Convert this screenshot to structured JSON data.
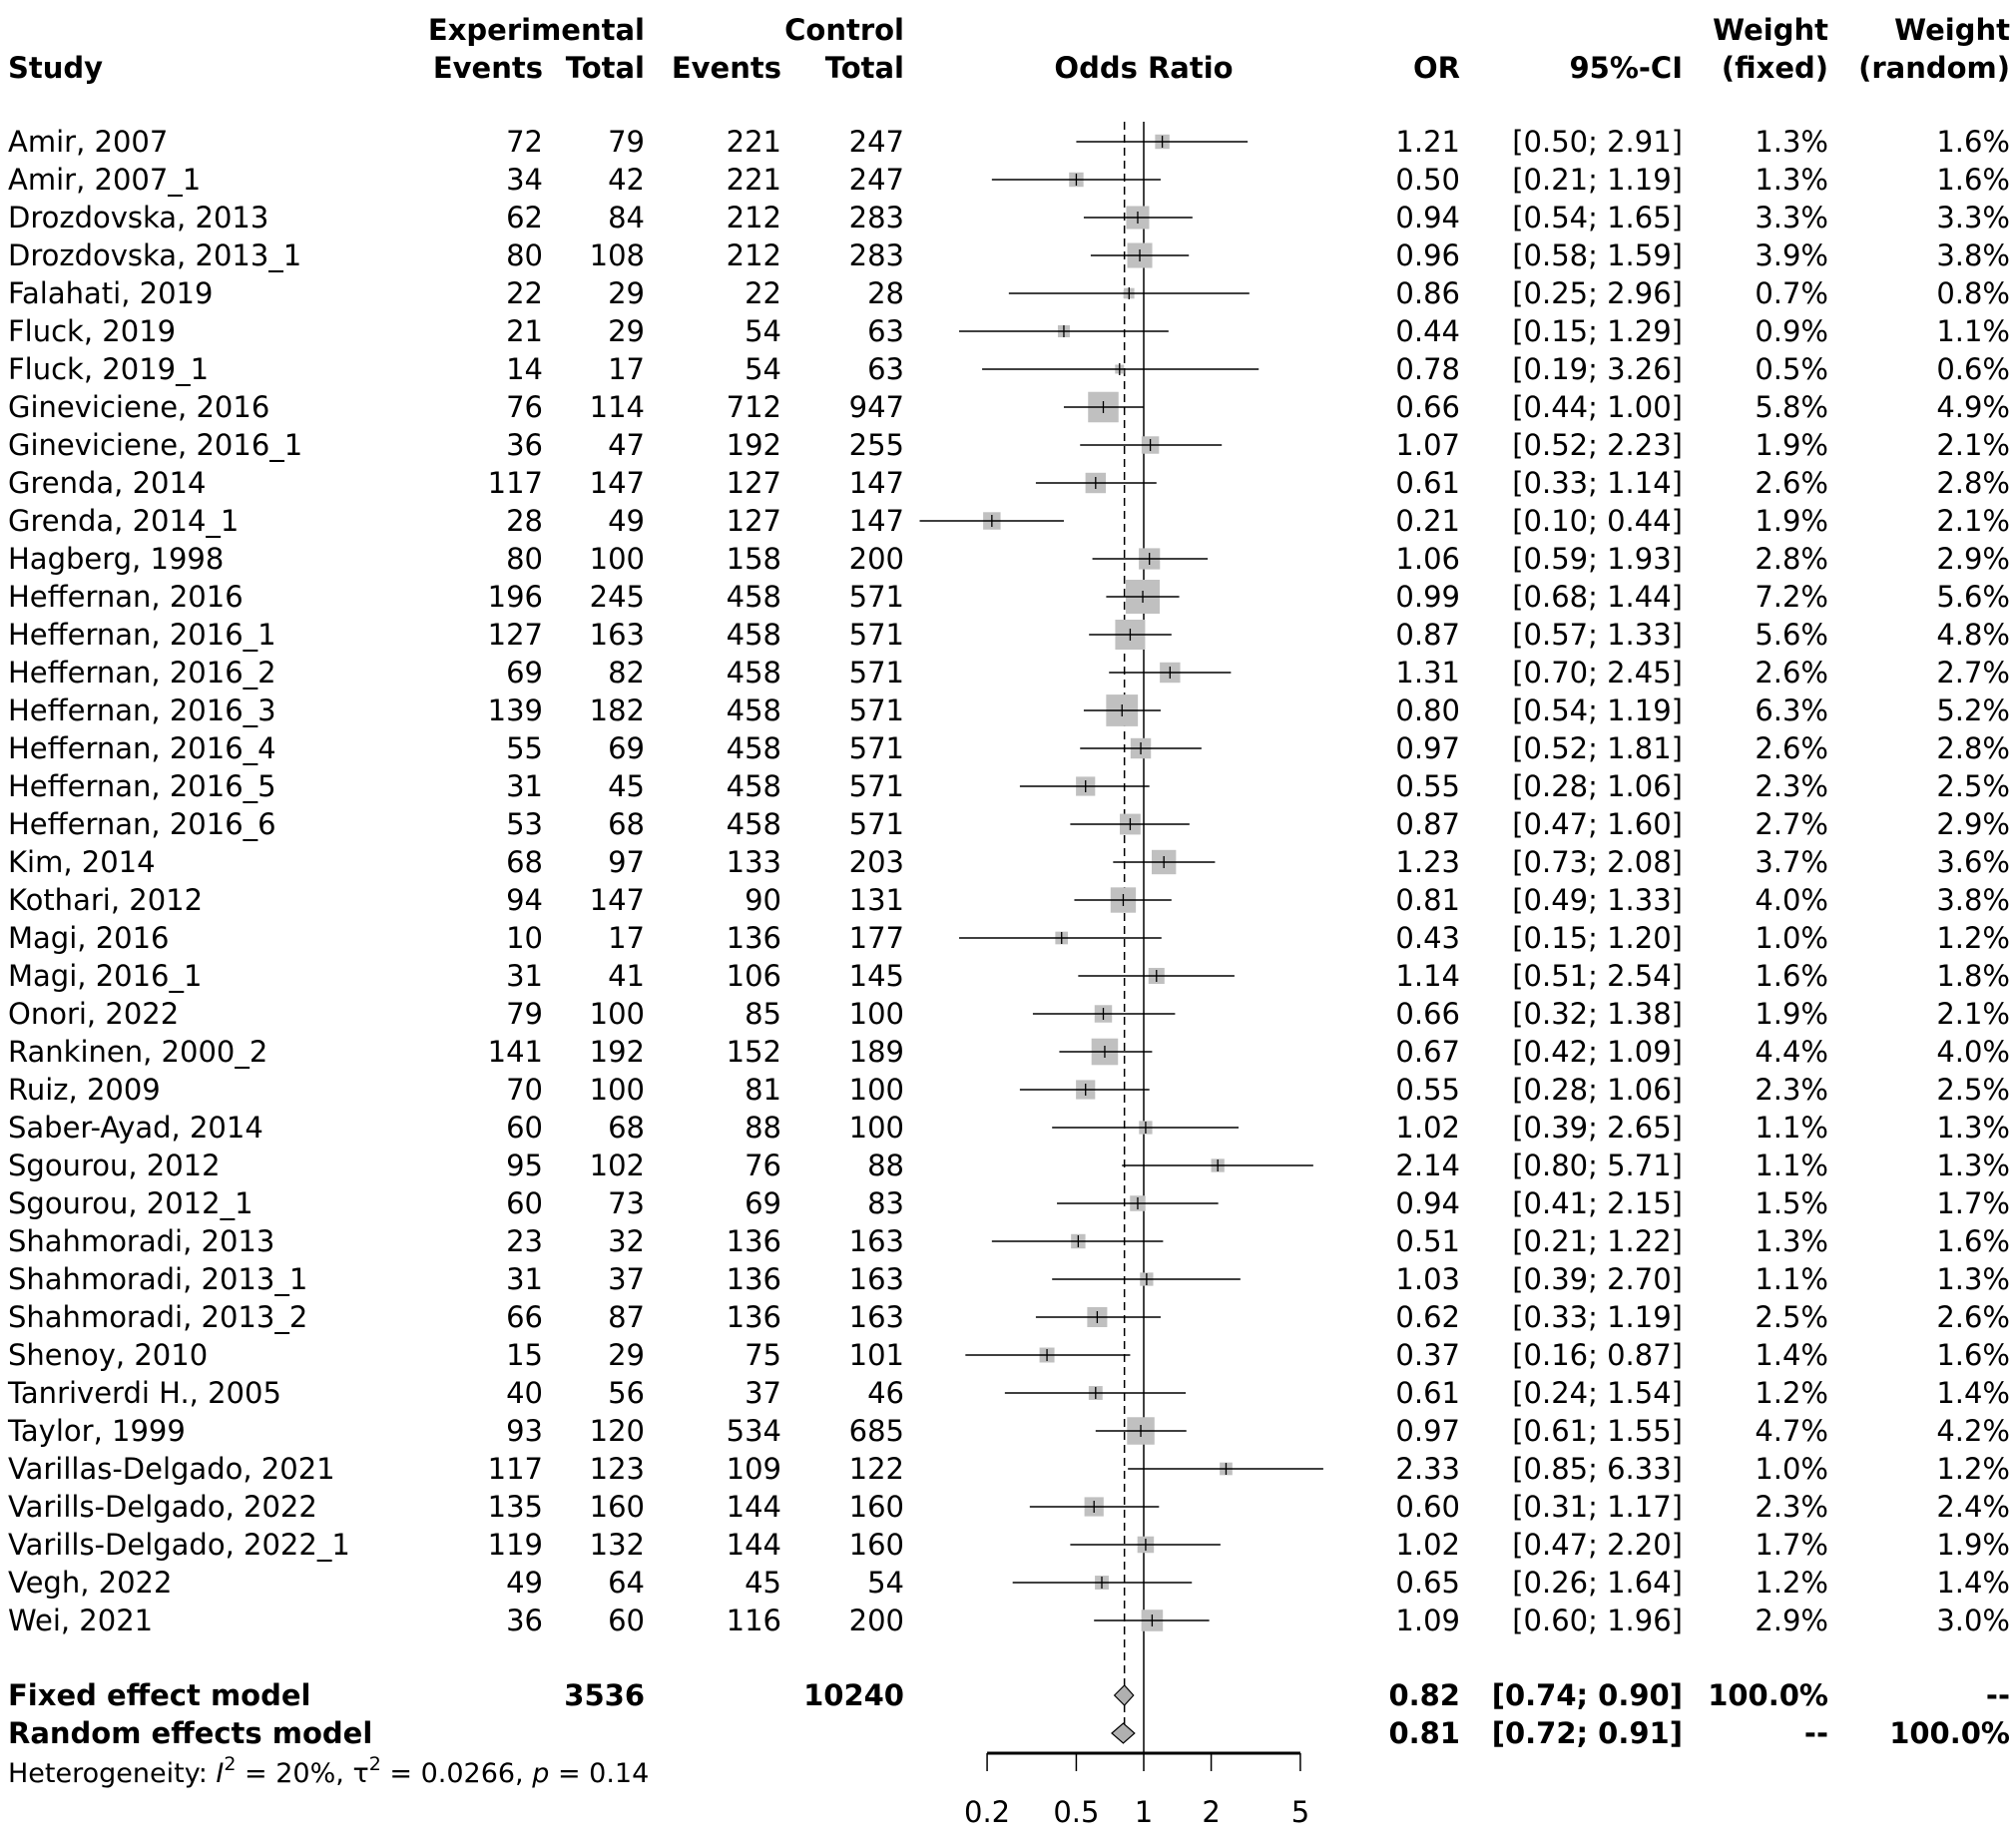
{
  "chart_data": {
    "type": "forest",
    "xlabel": "Odds Ratio",
    "scale": "log",
    "xlim": [
      0.2,
      5
    ],
    "ticks": [
      "0.2",
      "0.5",
      "1",
      "2",
      "5"
    ],
    "tick_values": [
      0.2,
      0.5,
      1,
      2,
      5
    ],
    "headers": {
      "study": "Study",
      "experimental": "Experimental",
      "control": "Control",
      "events": "Events",
      "total": "Total",
      "odds_ratio": "Odds Ratio",
      "or": "OR",
      "ci": "95%-CI",
      "weight": "Weight",
      "fixed": "(fixed)",
      "random": "(random)"
    },
    "studies": [
      {
        "study": "Amir, 2007",
        "e_ev": "72",
        "e_tot": "79",
        "c_ev": "221",
        "c_tot": "247",
        "or": "1.21",
        "ci": "[0.50; 2.91]",
        "wf": "1.3%",
        "wr": "1.6%",
        "v": [
          1.21,
          0.5,
          2.91,
          1.3
        ]
      },
      {
        "study": "Amir, 2007_1",
        "e_ev": "34",
        "e_tot": "42",
        "c_ev": "221",
        "c_tot": "247",
        "or": "0.50",
        "ci": "[0.21; 1.19]",
        "wf": "1.3%",
        "wr": "1.6%",
        "v": [
          0.5,
          0.21,
          1.19,
          1.3
        ]
      },
      {
        "study": "Drozdovska, 2013",
        "e_ev": "62",
        "e_tot": "84",
        "c_ev": "212",
        "c_tot": "283",
        "or": "0.94",
        "ci": "[0.54; 1.65]",
        "wf": "3.3%",
        "wr": "3.3%",
        "v": [
          0.94,
          0.54,
          1.65,
          3.3
        ]
      },
      {
        "study": "Drozdovska, 2013_1",
        "e_ev": "80",
        "e_tot": "108",
        "c_ev": "212",
        "c_tot": "283",
        "or": "0.96",
        "ci": "[0.58; 1.59]",
        "wf": "3.9%",
        "wr": "3.8%",
        "v": [
          0.96,
          0.58,
          1.59,
          3.9
        ]
      },
      {
        "study": "Falahati, 2019",
        "e_ev": "22",
        "e_tot": "29",
        "c_ev": "22",
        "c_tot": "28",
        "or": "0.86",
        "ci": "[0.25; 2.96]",
        "wf": "0.7%",
        "wr": "0.8%",
        "v": [
          0.86,
          0.25,
          2.96,
          0.7
        ]
      },
      {
        "study": "Fluck, 2019",
        "e_ev": "21",
        "e_tot": "29",
        "c_ev": "54",
        "c_tot": "63",
        "or": "0.44",
        "ci": "[0.15; 1.29]",
        "wf": "0.9%",
        "wr": "1.1%",
        "v": [
          0.44,
          0.15,
          1.29,
          0.9
        ]
      },
      {
        "study": "Fluck, 2019_1",
        "e_ev": "14",
        "e_tot": "17",
        "c_ev": "54",
        "c_tot": "63",
        "or": "0.78",
        "ci": "[0.19; 3.26]",
        "wf": "0.5%",
        "wr": "0.6%",
        "v": [
          0.78,
          0.19,
          3.26,
          0.5
        ]
      },
      {
        "study": "Gineviciene, 2016",
        "e_ev": "76",
        "e_tot": "114",
        "c_ev": "712",
        "c_tot": "947",
        "or": "0.66",
        "ci": "[0.44; 1.00]",
        "wf": "5.8%",
        "wr": "4.9%",
        "v": [
          0.66,
          0.44,
          1.0,
          5.8
        ]
      },
      {
        "study": "Gineviciene, 2016_1",
        "e_ev": "36",
        "e_tot": "47",
        "c_ev": "192",
        "c_tot": "255",
        "or": "1.07",
        "ci": "[0.52; 2.23]",
        "wf": "1.9%",
        "wr": "2.1%",
        "v": [
          1.07,
          0.52,
          2.23,
          1.9
        ]
      },
      {
        "study": "Grenda, 2014",
        "e_ev": "117",
        "e_tot": "147",
        "c_ev": "127",
        "c_tot": "147",
        "or": "0.61",
        "ci": "[0.33; 1.14]",
        "wf": "2.6%",
        "wr": "2.8%",
        "v": [
          0.61,
          0.33,
          1.14,
          2.6
        ]
      },
      {
        "study": "Grenda, 2014_1",
        "e_ev": "28",
        "e_tot": "49",
        "c_ev": "127",
        "c_tot": "147",
        "or": "0.21",
        "ci": "[0.10; 0.44]",
        "wf": "1.9%",
        "wr": "2.1%",
        "v": [
          0.21,
          0.1,
          0.44,
          1.9
        ]
      },
      {
        "study": "Hagberg, 1998",
        "e_ev": "80",
        "e_tot": "100",
        "c_ev": "158",
        "c_tot": "200",
        "or": "1.06",
        "ci": "[0.59; 1.93]",
        "wf": "2.8%",
        "wr": "2.9%",
        "v": [
          1.06,
          0.59,
          1.93,
          2.8
        ]
      },
      {
        "study": "Heffernan, 2016",
        "e_ev": "196",
        "e_tot": "245",
        "c_ev": "458",
        "c_tot": "571",
        "or": "0.99",
        "ci": "[0.68; 1.44]",
        "wf": "7.2%",
        "wr": "5.6%",
        "v": [
          0.99,
          0.68,
          1.44,
          7.2
        ]
      },
      {
        "study": "Heffernan, 2016_1",
        "e_ev": "127",
        "e_tot": "163",
        "c_ev": "458",
        "c_tot": "571",
        "or": "0.87",
        "ci": "[0.57; 1.33]",
        "wf": "5.6%",
        "wr": "4.8%",
        "v": [
          0.87,
          0.57,
          1.33,
          5.6
        ]
      },
      {
        "study": "Heffernan, 2016_2",
        "e_ev": "69",
        "e_tot": "82",
        "c_ev": "458",
        "c_tot": "571",
        "or": "1.31",
        "ci": "[0.70; 2.45]",
        "wf": "2.6%",
        "wr": "2.7%",
        "v": [
          1.31,
          0.7,
          2.45,
          2.6
        ]
      },
      {
        "study": "Heffernan, 2016_3",
        "e_ev": "139",
        "e_tot": "182",
        "c_ev": "458",
        "c_tot": "571",
        "or": "0.80",
        "ci": "[0.54; 1.19]",
        "wf": "6.3%",
        "wr": "5.2%",
        "v": [
          0.8,
          0.54,
          1.19,
          6.3
        ]
      },
      {
        "study": "Heffernan, 2016_4",
        "e_ev": "55",
        "e_tot": "69",
        "c_ev": "458",
        "c_tot": "571",
        "or": "0.97",
        "ci": "[0.52; 1.81]",
        "wf": "2.6%",
        "wr": "2.8%",
        "v": [
          0.97,
          0.52,
          1.81,
          2.6
        ]
      },
      {
        "study": "Heffernan, 2016_5",
        "e_ev": "31",
        "e_tot": "45",
        "c_ev": "458",
        "c_tot": "571",
        "or": "0.55",
        "ci": "[0.28; 1.06]",
        "wf": "2.3%",
        "wr": "2.5%",
        "v": [
          0.55,
          0.28,
          1.06,
          2.3
        ]
      },
      {
        "study": "Heffernan, 2016_6",
        "e_ev": "53",
        "e_tot": "68",
        "c_ev": "458",
        "c_tot": "571",
        "or": "0.87",
        "ci": "[0.47; 1.60]",
        "wf": "2.7%",
        "wr": "2.9%",
        "v": [
          0.87,
          0.47,
          1.6,
          2.7
        ]
      },
      {
        "study": "Kim, 2014",
        "e_ev": "68",
        "e_tot": "97",
        "c_ev": "133",
        "c_tot": "203",
        "or": "1.23",
        "ci": "[0.73; 2.08]",
        "wf": "3.7%",
        "wr": "3.6%",
        "v": [
          1.23,
          0.73,
          2.08,
          3.7
        ]
      },
      {
        "study": "Kothari, 2012",
        "e_ev": "94",
        "e_tot": "147",
        "c_ev": "90",
        "c_tot": "131",
        "or": "0.81",
        "ci": "[0.49; 1.33]",
        "wf": "4.0%",
        "wr": "3.8%",
        "v": [
          0.81,
          0.49,
          1.33,
          4.0
        ]
      },
      {
        "study": "Magi, 2016",
        "e_ev": "10",
        "e_tot": "17",
        "c_ev": "136",
        "c_tot": "177",
        "or": "0.43",
        "ci": "[0.15; 1.20]",
        "wf": "1.0%",
        "wr": "1.2%",
        "v": [
          0.43,
          0.15,
          1.2,
          1.0
        ]
      },
      {
        "study": "Magi, 2016_1",
        "e_ev": "31",
        "e_tot": "41",
        "c_ev": "106",
        "c_tot": "145",
        "or": "1.14",
        "ci": "[0.51; 2.54]",
        "wf": "1.6%",
        "wr": "1.8%",
        "v": [
          1.14,
          0.51,
          2.54,
          1.6
        ]
      },
      {
        "study": "Onori, 2022",
        "e_ev": "79",
        "e_tot": "100",
        "c_ev": "85",
        "c_tot": "100",
        "or": "0.66",
        "ci": "[0.32; 1.38]",
        "wf": "1.9%",
        "wr": "2.1%",
        "v": [
          0.66,
          0.32,
          1.38,
          1.9
        ]
      },
      {
        "study": "Rankinen, 2000_2",
        "e_ev": "141",
        "e_tot": "192",
        "c_ev": "152",
        "c_tot": "189",
        "or": "0.67",
        "ci": "[0.42; 1.09]",
        "wf": "4.4%",
        "wr": "4.0%",
        "v": [
          0.67,
          0.42,
          1.09,
          4.4
        ]
      },
      {
        "study": "Ruiz, 2009",
        "e_ev": "70",
        "e_tot": "100",
        "c_ev": "81",
        "c_tot": "100",
        "or": "0.55",
        "ci": "[0.28; 1.06]",
        "wf": "2.3%",
        "wr": "2.5%",
        "v": [
          0.55,
          0.28,
          1.06,
          2.3
        ]
      },
      {
        "study": "Saber-Ayad, 2014",
        "e_ev": "60",
        "e_tot": "68",
        "c_ev": "88",
        "c_tot": "100",
        "or": "1.02",
        "ci": "[0.39; 2.65]",
        "wf": "1.1%",
        "wr": "1.3%",
        "v": [
          1.02,
          0.39,
          2.65,
          1.1
        ]
      },
      {
        "study": "Sgourou, 2012",
        "e_ev": "95",
        "e_tot": "102",
        "c_ev": "76",
        "c_tot": "88",
        "or": "2.14",
        "ci": "[0.80; 5.71]",
        "wf": "1.1%",
        "wr": "1.3%",
        "v": [
          2.14,
          0.8,
          5.71,
          1.1
        ]
      },
      {
        "study": "Sgourou, 2012_1",
        "e_ev": "60",
        "e_tot": "73",
        "c_ev": "69",
        "c_tot": "83",
        "or": "0.94",
        "ci": "[0.41; 2.15]",
        "wf": "1.5%",
        "wr": "1.7%",
        "v": [
          0.94,
          0.41,
          2.15,
          1.5
        ]
      },
      {
        "study": "Shahmoradi, 2013",
        "e_ev": "23",
        "e_tot": "32",
        "c_ev": "136",
        "c_tot": "163",
        "or": "0.51",
        "ci": "[0.21; 1.22]",
        "wf": "1.3%",
        "wr": "1.6%",
        "v": [
          0.51,
          0.21,
          1.22,
          1.3
        ]
      },
      {
        "study": "Shahmoradi, 2013_1",
        "e_ev": "31",
        "e_tot": "37",
        "c_ev": "136",
        "c_tot": "163",
        "or": "1.03",
        "ci": "[0.39; 2.70]",
        "wf": "1.1%",
        "wr": "1.3%",
        "v": [
          1.03,
          0.39,
          2.7,
          1.1
        ]
      },
      {
        "study": "Shahmoradi, 2013_2",
        "e_ev": "66",
        "e_tot": "87",
        "c_ev": "136",
        "c_tot": "163",
        "or": "0.62",
        "ci": "[0.33; 1.19]",
        "wf": "2.5%",
        "wr": "2.6%",
        "v": [
          0.62,
          0.33,
          1.19,
          2.5
        ]
      },
      {
        "study": "Shenoy, 2010",
        "e_ev": "15",
        "e_tot": "29",
        "c_ev": "75",
        "c_tot": "101",
        "or": "0.37",
        "ci": "[0.16; 0.87]",
        "wf": "1.4%",
        "wr": "1.6%",
        "v": [
          0.37,
          0.16,
          0.87,
          1.4
        ]
      },
      {
        "study": "Tanriverdi H., 2005",
        "e_ev": "40",
        "e_tot": "56",
        "c_ev": "37",
        "c_tot": "46",
        "or": "0.61",
        "ci": "[0.24; 1.54]",
        "wf": "1.2%",
        "wr": "1.4%",
        "v": [
          0.61,
          0.24,
          1.54,
          1.2
        ]
      },
      {
        "study": "Taylor, 1999",
        "e_ev": "93",
        "e_tot": "120",
        "c_ev": "534",
        "c_tot": "685",
        "or": "0.97",
        "ci": "[0.61; 1.55]",
        "wf": "4.7%",
        "wr": "4.2%",
        "v": [
          0.97,
          0.61,
          1.55,
          4.7
        ]
      },
      {
        "study": "Varillas-Delgado, 2021",
        "e_ev": "117",
        "e_tot": "123",
        "c_ev": "109",
        "c_tot": "122",
        "or": "2.33",
        "ci": "[0.85; 6.33]",
        "wf": "1.0%",
        "wr": "1.2%",
        "v": [
          2.33,
          0.85,
          6.33,
          1.0
        ]
      },
      {
        "study": "Varills-Delgado, 2022",
        "e_ev": "135",
        "e_tot": "160",
        "c_ev": "144",
        "c_tot": "160",
        "or": "0.60",
        "ci": "[0.31; 1.17]",
        "wf": "2.3%",
        "wr": "2.4%",
        "v": [
          0.6,
          0.31,
          1.17,
          2.3
        ]
      },
      {
        "study": "Varills-Delgado, 2022_1",
        "e_ev": "119",
        "e_tot": "132",
        "c_ev": "144",
        "c_tot": "160",
        "or": "1.02",
        "ci": "[0.47; 2.20]",
        "wf": "1.7%",
        "wr": "1.9%",
        "v": [
          1.02,
          0.47,
          2.2,
          1.7
        ]
      },
      {
        "study": "Vegh, 2022",
        "e_ev": "49",
        "e_tot": "64",
        "c_ev": "45",
        "c_tot": "54",
        "or": "0.65",
        "ci": "[0.26; 1.64]",
        "wf": "1.2%",
        "wr": "1.4%",
        "v": [
          0.65,
          0.26,
          1.64,
          1.2
        ]
      },
      {
        "study": "Wei, 2021",
        "e_ev": "36",
        "e_tot": "60",
        "c_ev": "116",
        "c_tot": "200",
        "or": "1.09",
        "ci": "[0.60; 1.96]",
        "wf": "2.9%",
        "wr": "3.0%",
        "v": [
          1.09,
          0.6,
          1.96,
          2.9
        ]
      }
    ],
    "fixed": {
      "label": "Fixed effect model",
      "e_tot": "3536",
      "c_tot": "10240",
      "or": "0.82",
      "ci": "[0.74; 0.90]",
      "wf": "100.0%",
      "wr": "--",
      "v": [
        0.82,
        0.74,
        0.9
      ]
    },
    "random": {
      "label": "Random effects model",
      "or": "0.81",
      "ci": "[0.72; 0.91]",
      "wf": "--",
      "wr": "100.0%",
      "v": [
        0.81,
        0.72,
        0.91
      ]
    },
    "heterogeneity": {
      "prefix": "Heterogeneity: ",
      "i2_sym": "I",
      "i2": " = 20%, ",
      "tau_sym": "τ",
      "tau": " = 0.0266, ",
      "p_sym": "p",
      "p": " = 0.14",
      "sup": "2"
    },
    "colors": {
      "square": "#c0c0c0",
      "diamond": "#b0b0b0",
      "line": "#000000"
    }
  }
}
